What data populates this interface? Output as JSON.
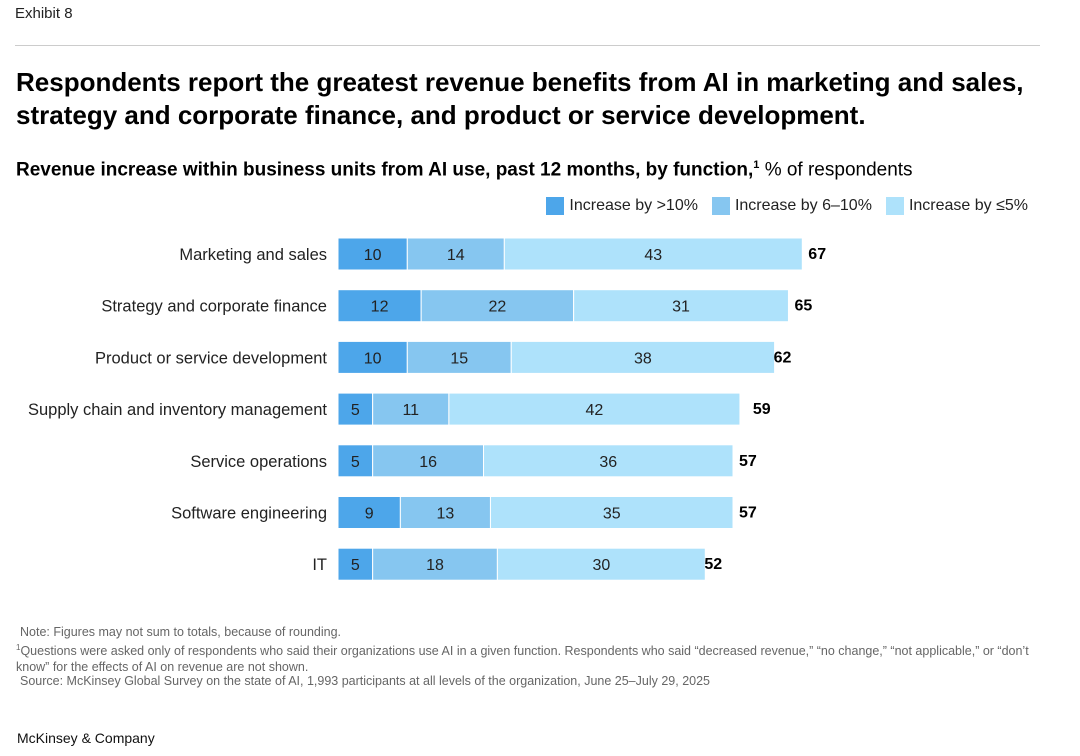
{
  "header": {
    "exhibit": "Exhibit 8",
    "title": "Respondents report the greatest revenue benefits from AI in marketing and sales, strategy and corporate finance, and product or service development."
  },
  "chart_data": {
    "type": "bar",
    "orientation": "horizontal-stacked",
    "title": "Revenue increase within business units from AI use, past 12 months, by function,",
    "title_footnote": "1",
    "unit": "% of respondents",
    "categories": [
      "Marketing and sales",
      "Strategy and corporate finance",
      "Product or service development",
      "Supply chain and inventory management",
      "Service operations",
      "Software engineering",
      "IT"
    ],
    "series": [
      {
        "name": "Increase by >10%",
        "color": "#4da6ea",
        "values": [
          10,
          12,
          10,
          5,
          5,
          9,
          5
        ]
      },
      {
        "name": "Increase by 6–10%",
        "color": "#86c6f0",
        "values": [
          14,
          22,
          15,
          11,
          16,
          13,
          18
        ]
      },
      {
        "name": "Increase by ≤5%",
        "color": "#aee2fb",
        "values": [
          43,
          31,
          38,
          42,
          36,
          35,
          30
        ]
      }
    ],
    "totals": [
      67,
      65,
      62,
      59,
      57,
      57,
      52
    ],
    "legend_position": "top-right",
    "grid": false
  },
  "notes": {
    "note": "Note: Figures may not sum to totals, because of rounding.",
    "footnote_mark": "1",
    "footnote": "Questions were asked only of respondents who said their organizations use AI in a given function. Respondents who said “decreased revenue,” “no change,” “not applicable,” or “don’t know” for the effects of AI on revenue are not shown.",
    "source": "Source: McKinsey Global Survey on the state of AI, 1,993 participants at all levels of the organization, June 25–July 29, 2025"
  },
  "footer": {
    "brand": "McKinsey & Company"
  }
}
